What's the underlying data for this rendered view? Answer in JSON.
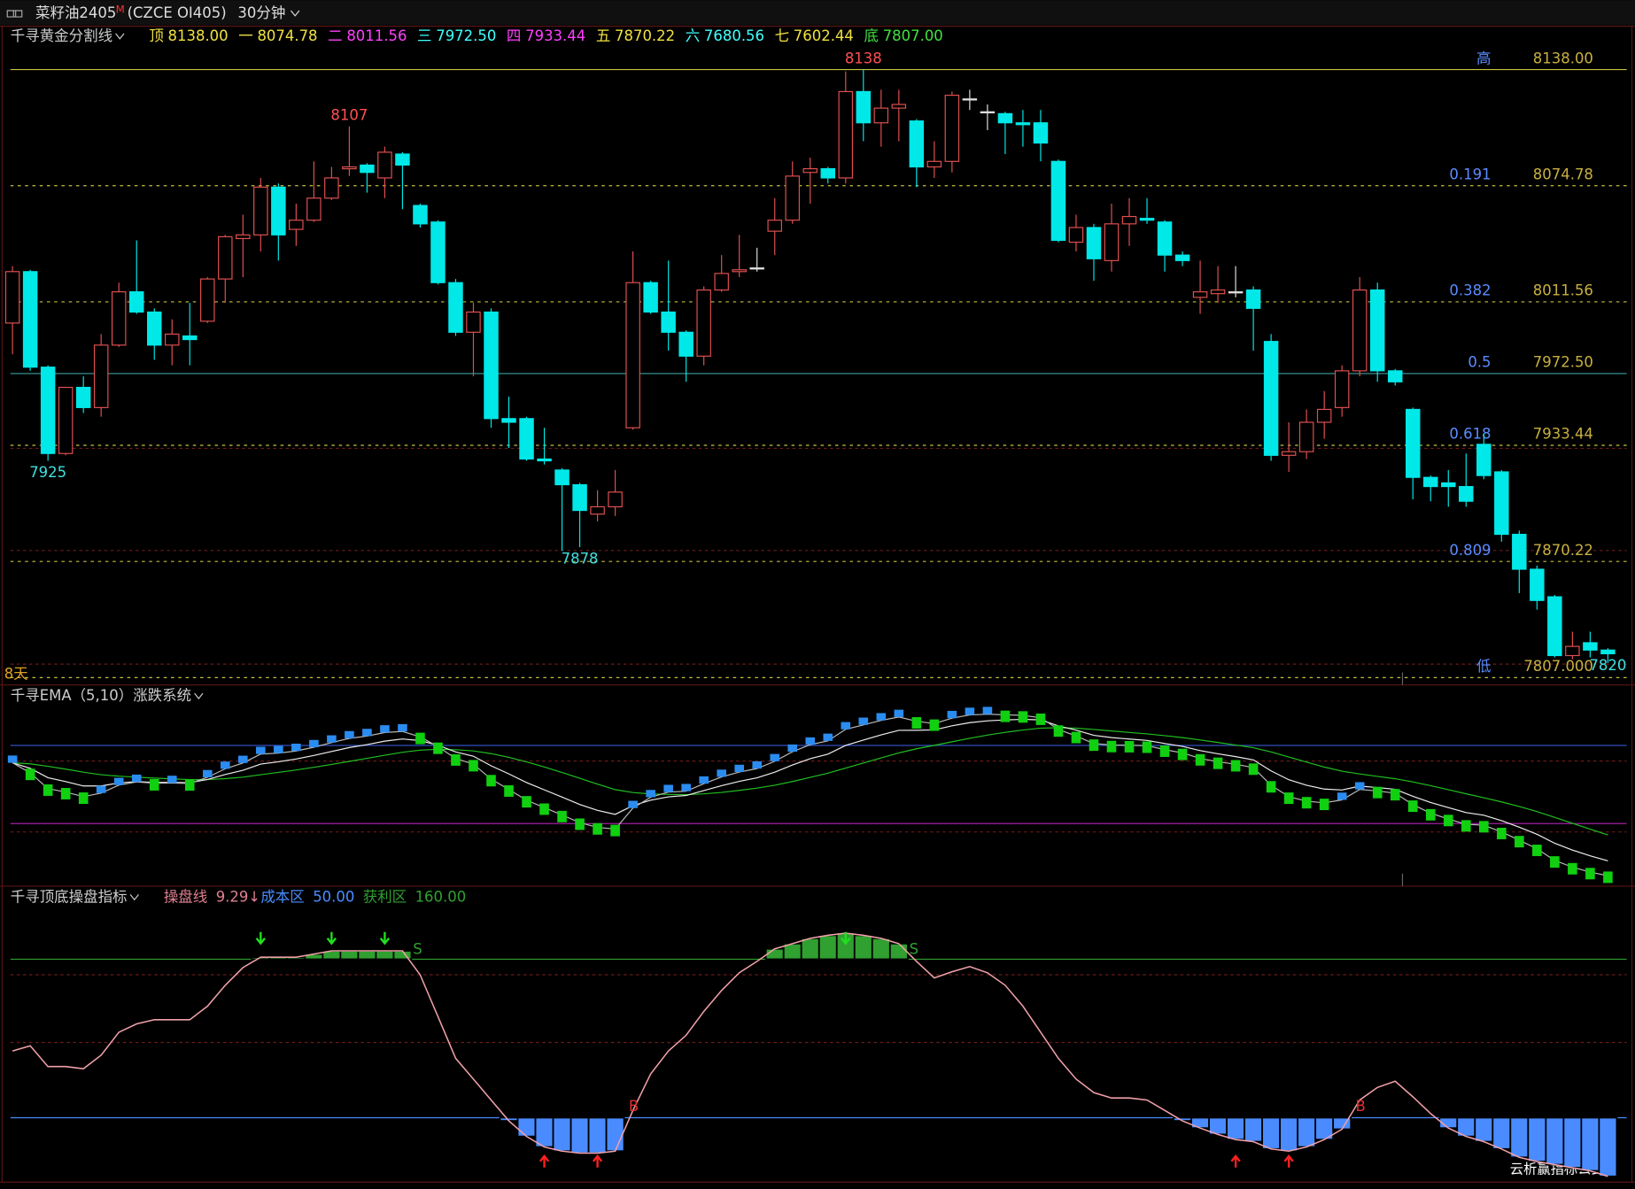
{
  "header": {
    "symbol": "菜籽油2405",
    "symbol_mark": "M",
    "contract": "(CZCE OI405)",
    "period": "30分钟"
  },
  "chart_data": [
    {
      "type": "candlestick",
      "title": "千寻黄金分割线",
      "title_items": [
        {
          "label": "顶",
          "value": "8138.00",
          "color": "#f0e040"
        },
        {
          "label": "一",
          "value": "8074.78",
          "color": "#f0e040"
        },
        {
          "label": "二",
          "value": "8011.56",
          "color": "#ff40ff"
        },
        {
          "label": "三",
          "value": "7972.50",
          "color": "#40ffff"
        },
        {
          "label": "四",
          "value": "7933.44",
          "color": "#ff40ff"
        },
        {
          "label": "五",
          "value": "7870.22",
          "color": "#f0e040"
        },
        {
          "label": "六",
          "value": "7680.56",
          "color": "#40ffff"
        },
        {
          "label": "七",
          "value": "7602.44",
          "color": "#f0e040"
        },
        {
          "label": "底",
          "value": "7807.00",
          "color": "#40e040"
        }
      ],
      "ylim": [
        7803,
        8161
      ],
      "up_color": "#e05050",
      "down_color": "#00e8e8",
      "candles": [
        [
          8000,
          8031,
          7983,
          8028
        ],
        [
          8028,
          8029,
          7974,
          7976
        ],
        [
          7976,
          7977,
          7925,
          7929
        ],
        [
          7929,
          7965,
          7928,
          7965
        ],
        [
          7965,
          7971,
          7951,
          7954
        ],
        [
          7954,
          7994,
          7949,
          7988
        ],
        [
          7988,
          8022,
          7987,
          8017
        ],
        [
          8017,
          8045,
          8005,
          8006
        ],
        [
          8006,
          8008,
          7980,
          7988
        ],
        [
          7988,
          8002,
          7977,
          7994
        ],
        [
          7993,
          8011,
          7977,
          7991
        ],
        [
          8001,
          8025,
          8000,
          8024
        ],
        [
          8024,
          8048,
          8011,
          8047
        ],
        [
          8046,
          8059,
          8025,
          8048
        ],
        [
          8048,
          8079,
          8039,
          8074
        ],
        [
          8074,
          8076,
          8034,
          8048
        ],
        [
          8051,
          8065,
          8042,
          8056
        ],
        [
          8056,
          8088,
          8055,
          8068
        ],
        [
          8068,
          8085,
          8067,
          8079
        ],
        [
          8084,
          8107,
          8080,
          8085
        ],
        [
          8086,
          8087,
          8071,
          8082
        ],
        [
          8079,
          8096,
          8068,
          8093
        ],
        [
          8092,
          8093,
          8062,
          8086
        ],
        [
          8064,
          8065,
          8052,
          8054
        ],
        [
          8055,
          8056,
          8021,
          8022
        ],
        [
          8022,
          8024,
          7993,
          7995
        ],
        [
          7995,
          8011,
          7971,
          8006
        ],
        [
          8006,
          8008,
          7943,
          7948
        ],
        [
          7948,
          7960,
          7932,
          7946
        ],
        [
          7948,
          7949,
          7925,
          7926
        ],
        [
          7926,
          7943,
          7923,
          7925
        ],
        [
          7920,
          7921,
          7876,
          7912
        ],
        [
          7912,
          7913,
          7878,
          7898
        ],
        [
          7896,
          7909,
          7892,
          7900
        ],
        [
          7900,
          7920,
          7895,
          7908
        ],
        [
          7943,
          8039,
          7942,
          8022
        ],
        [
          8022,
          8023,
          8005,
          8006
        ],
        [
          8006,
          8034,
          7985,
          7995
        ],
        [
          7995,
          7996,
          7968,
          7982
        ],
        [
          7982,
          8020,
          7977,
          8018
        ],
        [
          8018,
          8037,
          8017,
          8027
        ],
        [
          8028,
          8048,
          8025,
          8029
        ],
        [
          8030,
          8041,
          8028,
          8030
        ],
        [
          8050,
          8068,
          8037,
          8056
        ],
        [
          8056,
          8088,
          8054,
          8080
        ],
        [
          8082,
          8090,
          8065,
          8084
        ],
        [
          8084,
          8085,
          8076,
          8079
        ],
        [
          8079,
          8137,
          8076,
          8126
        ],
        [
          8126,
          8138,
          8099,
          8109
        ],
        [
          8109,
          8127,
          8096,
          8117
        ],
        [
          8117,
          8127,
          8099,
          8119
        ],
        [
          8110,
          8111,
          8074,
          8085
        ],
        [
          8085,
          8099,
          8079,
          8088
        ],
        [
          8088,
          8126,
          8082,
          8124
        ],
        [
          8122,
          8127,
          8116,
          8122
        ],
        [
          8115,
          8119,
          8105,
          8115
        ],
        [
          8114,
          8115,
          8092,
          8109
        ],
        [
          8109,
          8116,
          8096,
          8108
        ],
        [
          8109,
          8116,
          8088,
          8098
        ],
        [
          8088,
          8089,
          8044,
          8045
        ],
        [
          8044,
          8059,
          8039,
          8052
        ],
        [
          8052,
          8054,
          8023,
          8035
        ],
        [
          8034,
          8065,
          8028,
          8054
        ],
        [
          8054,
          8068,
          8042,
          8058
        ],
        [
          8057,
          8068,
          8054,
          8056
        ],
        [
          8055,
          8056,
          8028,
          8037
        ],
        [
          8037,
          8039,
          8031,
          8034
        ],
        [
          8014,
          8034,
          8005,
          8017
        ],
        [
          8016,
          8031,
          8011,
          8018
        ],
        [
          8017,
          8031,
          8014,
          8017
        ],
        [
          8018,
          8020,
          7985,
          8008
        ],
        [
          7990,
          7994,
          7925,
          7928
        ],
        [
          7928,
          7946,
          7919,
          7930
        ],
        [
          7930,
          7953,
          7926,
          7946
        ],
        [
          7946,
          7963,
          7937,
          7953
        ],
        [
          7954,
          7977,
          7949,
          7974
        ],
        [
          7974,
          8025,
          7971,
          8018
        ],
        [
          8018,
          8022,
          7968,
          7974
        ],
        [
          7974,
          7975,
          7966,
          7968
        ],
        [
          7953,
          7954,
          7904,
          7916
        ],
        [
          7916,
          7917,
          7903,
          7911
        ],
        [
          7913,
          7920,
          7900,
          7911
        ],
        [
          7911,
          7929,
          7900,
          7903
        ],
        [
          7934,
          7940,
          7915,
          7917
        ],
        [
          7919,
          7920,
          7881,
          7885
        ],
        [
          7885,
          7887,
          7853,
          7866
        ],
        [
          7866,
          7868,
          7844,
          7849
        ],
        [
          7851,
          7852,
          7818,
          7819
        ],
        [
          7819,
          7832,
          7817,
          7824
        ],
        [
          7826,
          7832,
          7818,
          7822
        ],
        [
          7822,
          7823,
          7815,
          7820
        ]
      ],
      "levels": [
        {
          "name": "高",
          "price": {
            "value": 8138,
            "label": "8138.00"
          },
          "color": "#c8c040",
          "dashed": false
        },
        {
          "name": "0.191",
          "price": {
            "value": 8074.78,
            "label": "8074.78"
          },
          "color": "#c8c040",
          "dashed": true
        },
        {
          "name": "0.382",
          "price": {
            "value": 8011.56,
            "label": "8011.56"
          },
          "color": "#c8c040",
          "dashed": true
        },
        {
          "name": "0.5",
          "price": {
            "value": 7972.5,
            "label": "7972.50"
          },
          "color": "#40a0a0",
          "dashed": false
        },
        {
          "name": "0.618",
          "price": {
            "value": 7933.44,
            "label": "7933.44"
          },
          "color": "#c8c040",
          "dashed": true
        },
        {
          "name": "0.809",
          "price": {
            "value": 7870.22,
            "label": "7870.22"
          },
          "color": "#c8c040",
          "dashed": true
        },
        {
          "name": "低",
          "price": {
            "value": 7807,
            "label": "7807.000"
          },
          "color": "#c8c040",
          "dashed": true
        }
      ],
      "extremes": [
        7925,
        8107,
        7878,
        8138,
        7820
      ],
      "span_label": "8天"
    },
    {
      "type": "ema",
      "title": "千寻EMA（5,10）涨跌系统",
      "periods": [
        5,
        10
      ]
    },
    {
      "type": "oscillator",
      "title": "千寻顶底操盘指标",
      "series_name": "操盘线",
      "trend_mark": "↓",
      "values": [
        96.3,
        99.9,
        85.5,
        85.5,
        84.0,
        93.4,
        109.3,
        115.1,
        118.0,
        118.0,
        118.0,
        127.4,
        141.9,
        154.2,
        161.4,
        161.4,
        161.4,
        163.6,
        165.8,
        165.8,
        165.8,
        165.8,
        165.8,
        149.1,
        120.2,
        91.2,
        76.8,
        62.3,
        47.8,
        37.0,
        29.7,
        26.8,
        25.4,
        25.4,
        26.8,
        55.1,
        80.4,
        96.3,
        107.2,
        123.8,
        138.3,
        150.6,
        158.5,
        167.2,
        170.8,
        174.5,
        176.6,
        178.1,
        176.6,
        174.5,
        170.8,
        158.5,
        147.0,
        151.3,
        154.9,
        150.6,
        141.9,
        127.4,
        109.3,
        91.2,
        76.8,
        67.4,
        63.7,
        63.7,
        62.3,
        55.1,
        47.8,
        42.8,
        38.4,
        34.8,
        33.4,
        28.3,
        26.8,
        29.7,
        34.8,
        42.0,
        62.3,
        71.0,
        75.3,
        64.5,
        52.9,
        42.8,
        37.0,
        33.4,
        28.3,
        22.5,
        19.6,
        17.4,
        15.3,
        13.1,
        9.29
      ],
      "cost": {
        "name": "成本区",
        "level": {
          "value": 50,
          "label": "50.00"
        },
        "color": "#4a8cff"
      },
      "profit": {
        "name": "获利区",
        "level": {
          "value": 160,
          "label": "160.00"
        },
        "color": "#30a030"
      },
      "ylim": [
        6,
        210
      ],
      "sell_mark": "S",
      "buy_mark": "B"
    }
  ],
  "watermark": "云析赢指标公式网"
}
